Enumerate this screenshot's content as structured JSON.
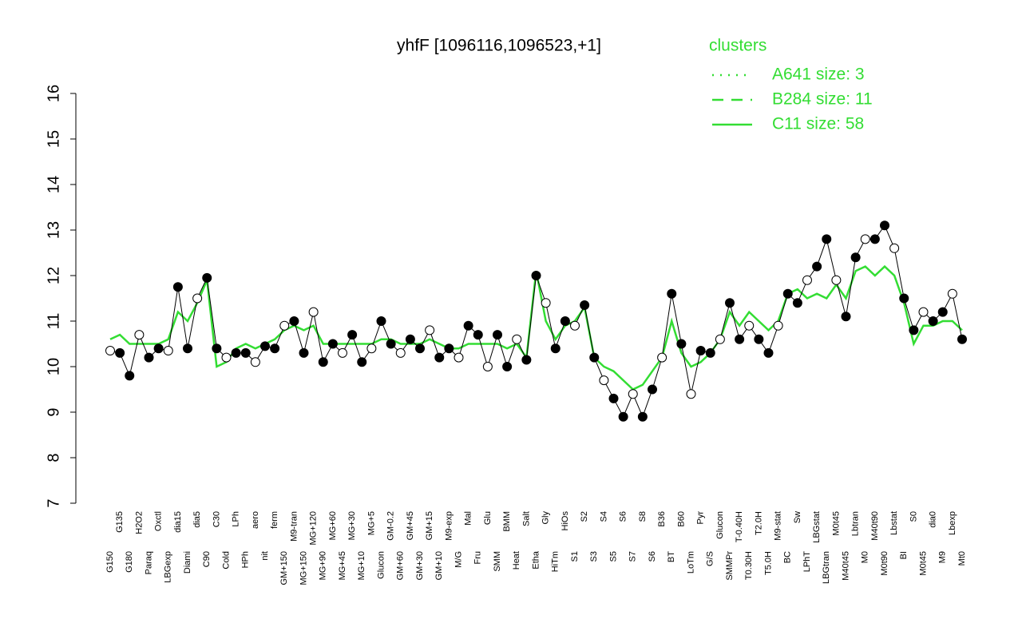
{
  "chart_data": {
    "type": "line",
    "title": "yhfF [1096116,1096523,+1]",
    "categories": [
      "G150",
      "G135",
      "G180",
      "H2O2",
      "Paraq",
      "Oxctl",
      "LBGexp",
      "dia15",
      "Diami",
      "dia5",
      "C90",
      "C30",
      "Cold",
      "LPh",
      "HPh",
      "aero",
      "nit",
      "ferm",
      "GM+150",
      "M9-tran",
      "MG+150",
      "MG+120",
      "MG+90",
      "MG+60",
      "MG+45",
      "MG+30",
      "MG+10",
      "MG+5",
      "Glucon",
      "GM-0.2",
      "GM+60",
      "GM+45",
      "GM+30",
      "GM+15",
      "GM+10",
      "M9-exp",
      "M/G",
      "Mal",
      "Fru",
      "Glu",
      "SMM",
      "BMM",
      "Heat",
      "Salt",
      "Etha",
      "Gly",
      "HiTm",
      "HiOs",
      "S1",
      "S2",
      "S3",
      "S4",
      "S5",
      "S6",
      "S7",
      "S8",
      "S6",
      "B36",
      "BT",
      "B60",
      "LoTm",
      "Pyr",
      "G/S",
      "Glucon",
      "SMMPr",
      "T-0.40H",
      "T0.30H",
      "T2.0H",
      "T5.0H",
      "M9-stat",
      "BC",
      "Sw",
      "LPhT",
      "LBGstat",
      "LBGtran",
      "M0t45",
      "M40t45",
      "Lbtran",
      "M0",
      "M40t90",
      "M0t90",
      "Lbstat",
      "BI",
      "S0",
      "M0t45",
      "dia0",
      "M9",
      "Lbexp",
      "Mt0"
    ],
    "series": [
      {
        "color": "#000000",
        "values": [
          10.35,
          10.3,
          9.8,
          10.7,
          10.2,
          10.4,
          10.35,
          11.75,
          10.4,
          11.5,
          11.95,
          10.4,
          10.2,
          10.3,
          10.3,
          10.1,
          10.45,
          10.4,
          10.9,
          11.0,
          10.3,
          11.2,
          10.1,
          10.5,
          10.3,
          10.7,
          10.1,
          10.4,
          11.0,
          10.5,
          10.3,
          10.6,
          10.4,
          10.8,
          10.2,
          10.4,
          10.2,
          10.9,
          10.7,
          10.0,
          10.7,
          10.0,
          10.6,
          10.15,
          12.0,
          11.4,
          10.4,
          11.0,
          10.9,
          11.35,
          10.2,
          9.7,
          9.3,
          8.9,
          9.4,
          8.9,
          9.5,
          10.2,
          11.6,
          10.5,
          9.4,
          10.35,
          10.3,
          10.6,
          11.4,
          10.6,
          10.9,
          10.6,
          10.3,
          10.9,
          11.6,
          11.4,
          11.9,
          12.2,
          12.8,
          11.9,
          11.1,
          12.4,
          12.8,
          12.8,
          13.1,
          12.6,
          11.5,
          10.8,
          11.2,
          11.0,
          11.2,
          11.6,
          10.6
        ]
      },
      {
        "color": "#33dd33",
        "values": [
          10.6,
          10.7,
          10.5,
          10.5,
          10.5,
          10.5,
          10.6,
          11.2,
          11.0,
          11.4,
          11.9,
          10.0,
          10.1,
          10.4,
          10.5,
          10.4,
          10.5,
          10.6,
          10.8,
          10.9,
          10.8,
          10.9,
          10.5,
          10.5,
          10.5,
          10.5,
          10.5,
          10.5,
          10.6,
          10.6,
          10.5,
          10.5,
          10.5,
          10.6,
          10.5,
          10.4,
          10.4,
          10.5,
          10.5,
          10.5,
          10.5,
          10.4,
          10.5,
          10.2,
          12.1,
          11.0,
          10.6,
          10.9,
          11.0,
          11.3,
          10.2,
          10.0,
          9.9,
          9.7,
          9.5,
          9.6,
          9.9,
          10.2,
          11.0,
          10.3,
          10.0,
          10.1,
          10.3,
          10.6,
          11.2,
          10.9,
          11.2,
          11.0,
          10.8,
          11.0,
          11.6,
          11.7,
          11.5,
          11.6,
          11.5,
          11.8,
          11.5,
          12.1,
          12.2,
          12.0,
          12.2,
          12.0,
          11.4,
          10.5,
          10.9,
          10.9,
          11.0,
          11.0,
          10.8
        ]
      }
    ],
    "ylim": [
      7,
      16
    ],
    "yticks": [
      7,
      8,
      9,
      10,
      11,
      12,
      13,
      14,
      15,
      16
    ],
    "legend": {
      "title": "clusters",
      "color": "#33dd33",
      "entries": [
        {
          "label": "A641 size: 3",
          "style": "dotted"
        },
        {
          "label": "B284 size: 11",
          "style": "dashed"
        },
        {
          "label": "C11 size: 58",
          "style": "solid"
        }
      ]
    }
  }
}
